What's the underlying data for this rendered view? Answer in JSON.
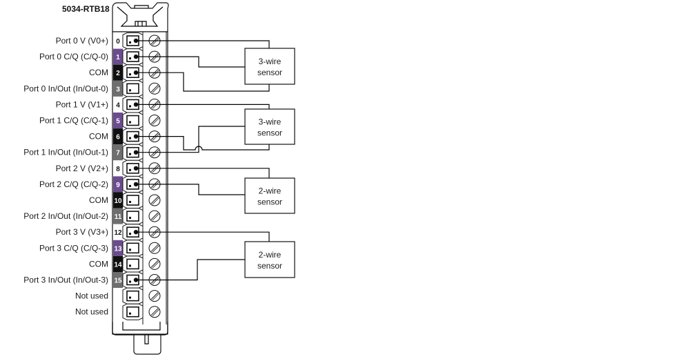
{
  "module_title": "5034-RTB18",
  "colors": {
    "purple": "#6b4c8f",
    "black": "#111111",
    "gray": "#6e6e6e",
    "white": "#ffffff"
  },
  "terminals": [
    {
      "number": "0",
      "label": "Port 0 V (V0+)",
      "color": "white",
      "wired": true
    },
    {
      "number": "1",
      "label": "Port 0 C/Q (C/Q-0)",
      "color": "purple",
      "wired": true
    },
    {
      "number": "2",
      "label": "COM",
      "color": "black",
      "wired": true
    },
    {
      "number": "3",
      "label": "Port 0 In/Out (In/Out-0)",
      "color": "gray",
      "wired": false
    },
    {
      "number": "4",
      "label": "Port 1 V (V1+)",
      "color": "white",
      "wired": true
    },
    {
      "number": "5",
      "label": "Port 1 C/Q (C/Q-1)",
      "color": "purple",
      "wired": false
    },
    {
      "number": "6",
      "label": "COM",
      "color": "black",
      "wired": true
    },
    {
      "number": "7",
      "label": "Port 1 In/Out (In/Out-1)",
      "color": "gray",
      "wired": true
    },
    {
      "number": "8",
      "label": "Port 2 V (V2+)",
      "color": "white",
      "wired": true
    },
    {
      "number": "9",
      "label": "Port 2 C/Q (C/Q-2)",
      "color": "purple",
      "wired": true
    },
    {
      "number": "10",
      "label": "COM",
      "color": "black",
      "wired": false
    },
    {
      "number": "11",
      "label": "Port 2 In/Out (In/Out-2)",
      "color": "gray",
      "wired": false
    },
    {
      "number": "12",
      "label": "Port 3 V (V3+)",
      "color": "white",
      "wired": true
    },
    {
      "number": "13",
      "label": "Port 3 C/Q (C/Q-3)",
      "color": "purple",
      "wired": false
    },
    {
      "number": "14",
      "label": "COM",
      "color": "black",
      "wired": false
    },
    {
      "number": "15",
      "label": "Port 3 In/Out (In/Out-3)",
      "color": "gray",
      "wired": true
    },
    {
      "number": "",
      "label": "Not used",
      "color": "white",
      "wired": false
    },
    {
      "number": "",
      "label": "Not used",
      "color": "white",
      "wired": false
    }
  ],
  "sensors": [
    {
      "line1": "3-wire",
      "line2": "sensor"
    },
    {
      "line1": "3-wire",
      "line2": "sensor"
    },
    {
      "line1": "2-wire",
      "line2": "sensor"
    },
    {
      "line1": "2-wire",
      "line2": "sensor"
    }
  ]
}
